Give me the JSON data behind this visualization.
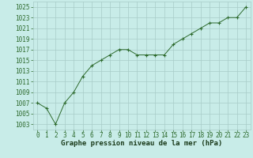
{
  "x": [
    0,
    1,
    2,
    3,
    4,
    5,
    6,
    7,
    8,
    9,
    10,
    11,
    12,
    13,
    14,
    15,
    16,
    17,
    18,
    19,
    20,
    21,
    22,
    23
  ],
  "y": [
    1007,
    1006,
    1003,
    1007,
    1009,
    1012,
    1014,
    1015,
    1016,
    1017,
    1017,
    1016,
    1016,
    1016,
    1016,
    1018,
    1019,
    1020,
    1021,
    1022,
    1022,
    1023,
    1023,
    1025
  ],
  "line_color": "#2d6a2d",
  "marker_color": "#2d6a2d",
  "bg_color": "#c8ece8",
  "grid_color": "#a8ccc8",
  "xlabel": "Graphe pression niveau de la mer (hPa)",
  "xlabel_color": "#1a3a1a",
  "ylim_min": 1002,
  "ylim_max": 1026,
  "ytick_start": 1003,
  "ytick_step": 2,
  "xtick_labels": [
    "0",
    "1",
    "2",
    "3",
    "4",
    "5",
    "6",
    "7",
    "8",
    "9",
    "10",
    "11",
    "12",
    "13",
    "14",
    "15",
    "16",
    "17",
    "18",
    "19",
    "20",
    "21",
    "22",
    "23"
  ],
  "xlabel_fontsize": 6.5,
  "tick_fontsize": 5.5
}
